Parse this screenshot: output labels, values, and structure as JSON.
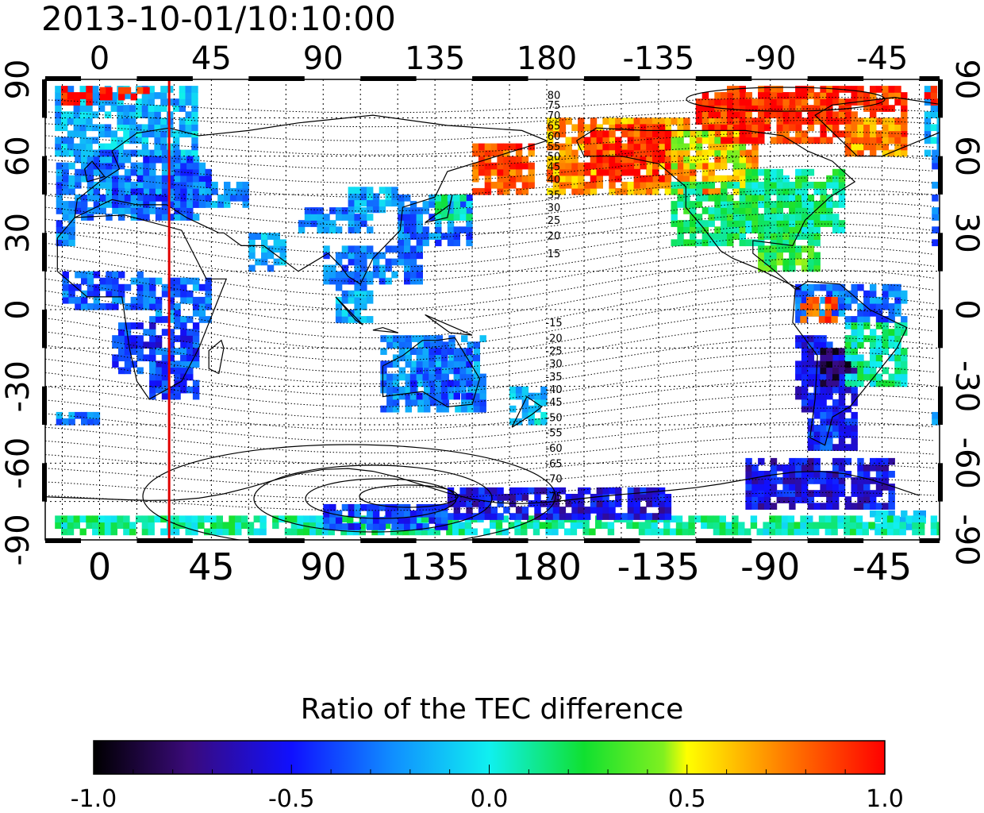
{
  "title": "2013-10-01/10:10:00",
  "map": {
    "lon_ticks": [
      "0",
      "45",
      "90",
      "135",
      "180",
      "-135",
      "-90",
      "-45"
    ],
    "lat_ticks": [
      "90",
      "60",
      "30",
      "0",
      "-30",
      "-60",
      "-90"
    ],
    "marker_meridian": "red vertical line at longitude 28",
    "contour_labels": [
      "80",
      "75",
      "70",
      "65",
      "60",
      "55",
      "50",
      "45",
      "40",
      "35",
      "30",
      "25",
      "20",
      "15",
      "-15",
      "-20",
      "-25",
      "-30",
      "-35",
      "-40",
      "-45",
      "-50",
      "-55",
      "-60",
      "-65",
      "-70",
      "-75"
    ]
  },
  "colorbar": {
    "title": "Ratio of the TEC difference",
    "range": [
      -1.0,
      1.0
    ],
    "ticks": [
      "-1.0",
      "-0.5",
      "0.0",
      "0.5",
      "1.0"
    ],
    "colormap": "jet: black, purple, blue, cyan, green, yellow, red"
  }
}
